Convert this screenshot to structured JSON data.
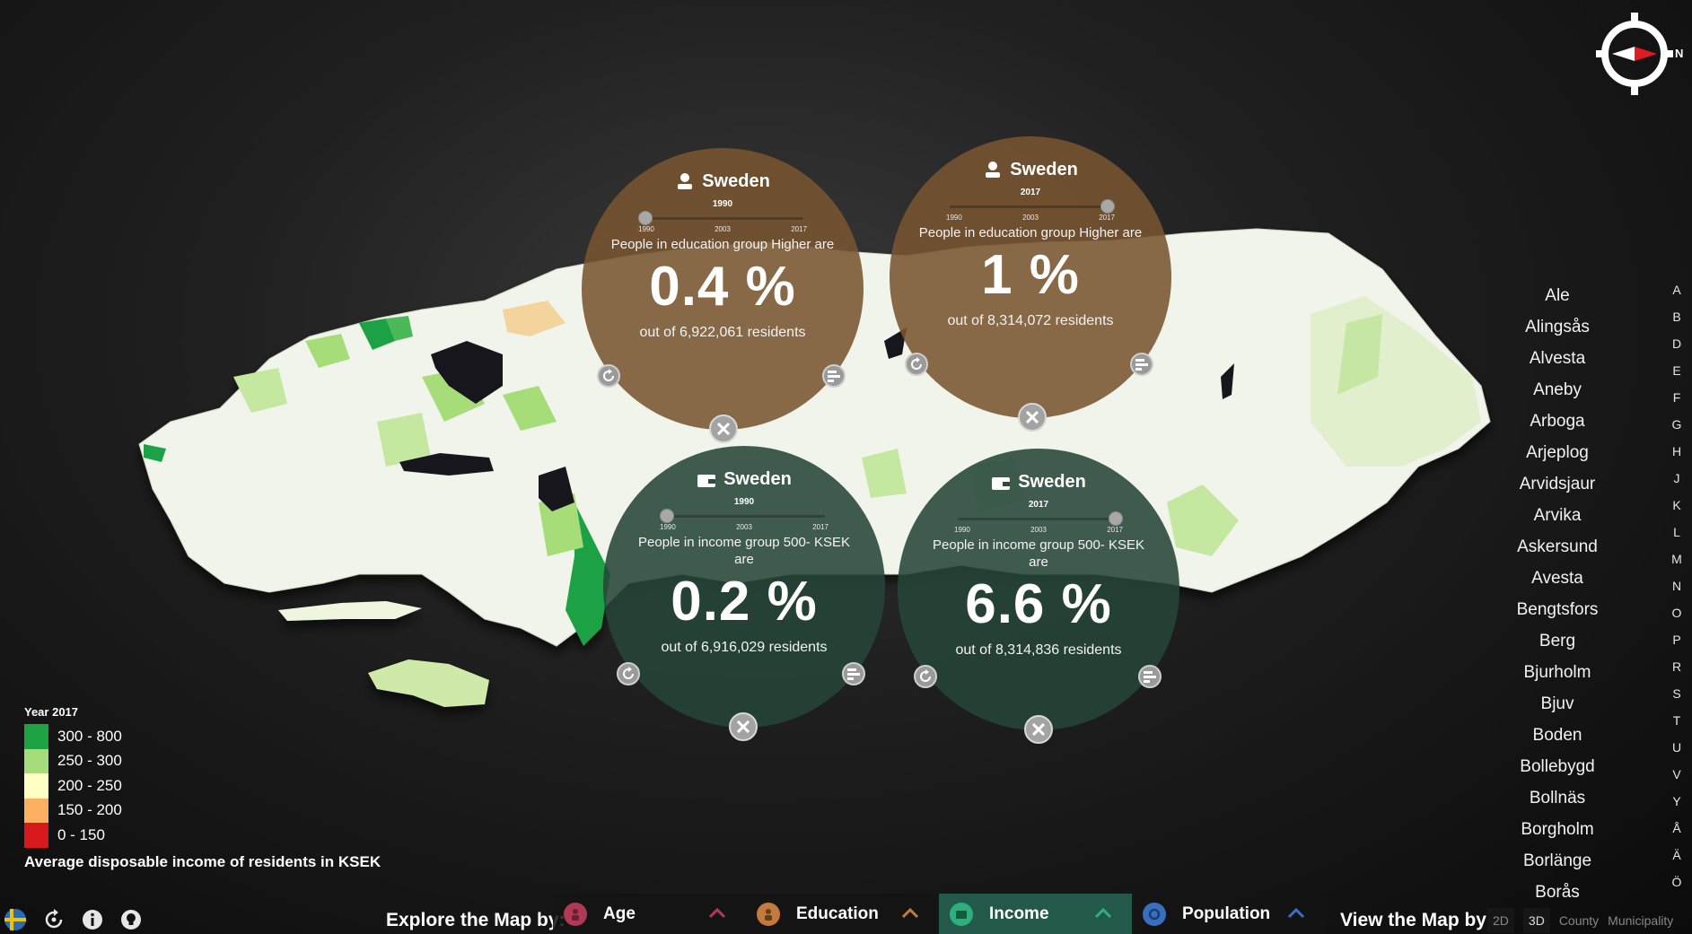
{
  "compass": {
    "north_label": "N"
  },
  "bubbles": [
    {
      "kind": "edu",
      "place": "Sweden",
      "year": "1990",
      "slider": 0,
      "ticks": [
        "1990",
        "2003",
        "2017"
      ],
      "desc": "People in education group Higher are",
      "value": "0.4 %",
      "footer": "out of 6,922,061 residents"
    },
    {
      "kind": "edu",
      "place": "Sweden",
      "year": "2017",
      "slider": 1,
      "ticks": [
        "1990",
        "2003",
        "2017"
      ],
      "desc": "People in education group Higher are",
      "value": "1 %",
      "footer": "out of 8,314,072 residents"
    },
    {
      "kind": "inc",
      "place": "Sweden",
      "year": "1990",
      "slider": 0,
      "ticks": [
        "1990",
        "2003",
        "2017"
      ],
      "desc": "People in income group 500- KSEK are",
      "value": "0.2 %",
      "footer": "out of 6,916,029 residents"
    },
    {
      "kind": "inc",
      "place": "Sweden",
      "year": "2017",
      "slider": 1,
      "ticks": [
        "1990",
        "2003",
        "2017"
      ],
      "desc": "People in income group 500- KSEK are",
      "value": "6.6 %",
      "footer": "out of 8,314,836 residents"
    }
  ],
  "municipalities": [
    "Ale",
    "Alingsås",
    "Alvesta",
    "Aneby",
    "Arboga",
    "Arjeplog",
    "Arvidsjaur",
    "Arvika",
    "Askersund",
    "Avesta",
    "Bengtsfors",
    "Berg",
    "Bjurholm",
    "Bjuv",
    "Boden",
    "Bollebygd",
    "Bollnäs",
    "Borgholm",
    "Borlänge",
    "Borås"
  ],
  "alphabet": [
    "A",
    "B",
    "D",
    "E",
    "F",
    "G",
    "H",
    "J",
    "K",
    "L",
    "M",
    "N",
    "O",
    "P",
    "R",
    "S",
    "T",
    "U",
    "V",
    "Y",
    "Å",
    "Ä",
    "Ö"
  ],
  "legend": {
    "title": "Year 2017",
    "items": [
      {
        "label": "300 - 800",
        "color": "#1fa244"
      },
      {
        "label": "250 - 300",
        "color": "#a7dd78"
      },
      {
        "label": "200 - 250",
        "color": "#ffffc4"
      },
      {
        "label": "150 - 200",
        "color": "#fdaf62"
      },
      {
        "label": "0 - 150",
        "color": "#d7191c"
      }
    ],
    "caption": "Average disposable income of residents in KSEK"
  },
  "bottom_icons": [
    "sweden-flag-icon",
    "reset-view-icon",
    "info-icon",
    "lightbulb-icon"
  ],
  "explore": {
    "label": "Explore the Map by:",
    "tabs": [
      {
        "label": "Age",
        "icon": "age-icon",
        "color": "#b03a55",
        "active": false
      },
      {
        "label": "Education",
        "icon": "education-icon",
        "color": "#c27a3f",
        "active": false
      },
      {
        "label": "Income",
        "icon": "income-icon",
        "color": "#2fae7e",
        "active": true
      },
      {
        "label": "Population",
        "icon": "population-icon",
        "color": "#3a6fc0",
        "active": false
      }
    ]
  },
  "view": {
    "label": "View the Map by:",
    "options": [
      "2D",
      "3D",
      "County",
      "Municipality"
    ],
    "selected": "3D"
  }
}
